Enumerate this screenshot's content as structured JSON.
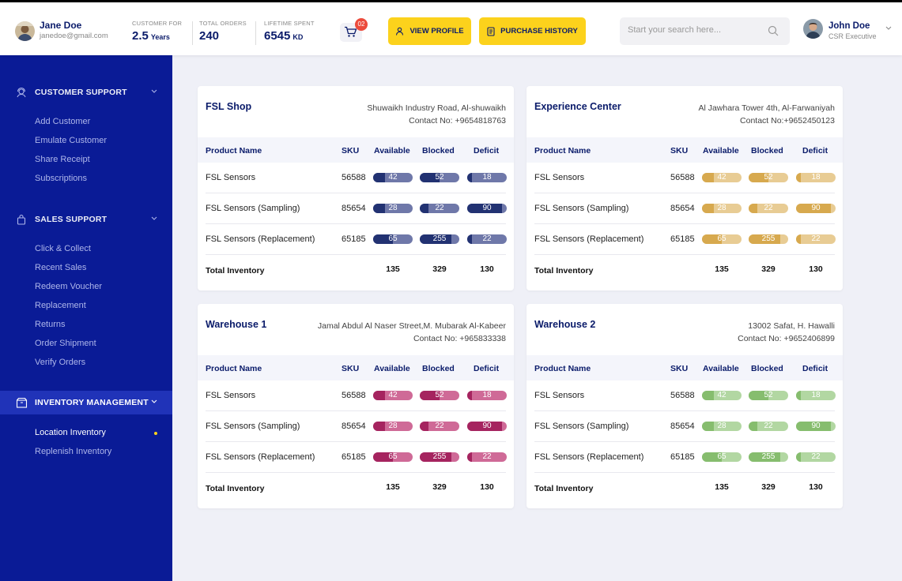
{
  "colors": {
    "navy": "#0a1b6a",
    "sidebar": "#0a1b96",
    "accent_yellow": "#fcd21c",
    "badge_red": "#ec4b3c"
  },
  "customer": {
    "name": "Jane Doe",
    "email": "janedoe@gmail.com"
  },
  "stats": [
    {
      "label": "CUSTOMER FOR",
      "value": "2.5",
      "unit": "Years"
    },
    {
      "label": "TOTAL ORDERS",
      "value": "240",
      "unit": ""
    },
    {
      "label": "LIFETIME SPENT",
      "value": "6545",
      "unit": "KD"
    }
  ],
  "cart": {
    "icon": "cart-icon",
    "count": "02"
  },
  "buttons": {
    "view_profile": "VIEW PROFILE",
    "purchase_history": "PURCHASE HISTORY"
  },
  "search": {
    "placeholder": "Start your search here...",
    "value": ""
  },
  "user": {
    "name": "John Doe",
    "role": "CSR Executive"
  },
  "sidebar": {
    "sections": [
      {
        "title": "CUSTOMER SUPPORT",
        "icon": "support-agent-icon",
        "items": [
          "Add Customer",
          "Emulate Customer",
          "Share Receipt",
          "Subscriptions"
        ]
      },
      {
        "title": "SALES SUPPORT",
        "icon": "bag-icon",
        "items": [
          "Click & Collect",
          "Recent Sales",
          "Redeem Voucher",
          "Replacement",
          "Returns",
          "Order Shipment",
          "Verify Orders"
        ]
      },
      {
        "title": "INVENTORY MANAGEMENT",
        "icon": "inventory-box-icon",
        "items": [
          "Location Inventory",
          "Replenish Inventory"
        ],
        "active_item": "Location Inventory"
      }
    ]
  },
  "table_headers": [
    "Product Name",
    "SKU",
    "Available",
    "Blocked",
    "Deficit"
  ],
  "total_label": "Total Inventory",
  "locations": [
    {
      "name": "FSL Shop",
      "address": "Shuwaikh Industry Road, Al-shuwaikh",
      "contact": "Contact No: +9654818763",
      "theme": "navy",
      "colors": {
        "dark": "#223272",
        "light": "#6f78a9"
      },
      "rows": [
        {
          "name": "FSL Sensors",
          "sku": "56588",
          "available": "42",
          "blocked": "52",
          "deficit": "18",
          "available_fill": 0.3,
          "blocked_fill": 0.5,
          "deficit_fill": 0.12
        },
        {
          "name": "FSL Sensors (Sampling)",
          "sku": "85654",
          "available": "28",
          "blocked": "22",
          "deficit": "90",
          "available_fill": 0.3,
          "blocked_fill": 0.22,
          "deficit_fill": 0.88
        },
        {
          "name": "FSL Sensors (Replacement)",
          "sku": "65185",
          "available": "65",
          "blocked": "255",
          "deficit": "22",
          "available_fill": 0.5,
          "blocked_fill": 0.8,
          "deficit_fill": 0.12
        }
      ],
      "totals": {
        "available": "135",
        "blocked": "329",
        "deficit": "130"
      }
    },
    {
      "name": "Experience Center",
      "address": "Al Jawhara Tower 4th, Al-Farwaniyah",
      "contact": "Contact No:+9652450123",
      "theme": "gold",
      "colors": {
        "dark": "#d7a94e",
        "light": "#e8cc94"
      },
      "rows": [
        {
          "name": "FSL Sensors",
          "sku": "56588",
          "available": "42",
          "blocked": "52",
          "deficit": "18",
          "available_fill": 0.3,
          "blocked_fill": 0.5,
          "deficit_fill": 0.12
        },
        {
          "name": "FSL Sensors (Sampling)",
          "sku": "85654",
          "available": "28",
          "blocked": "22",
          "deficit": "90",
          "available_fill": 0.3,
          "blocked_fill": 0.22,
          "deficit_fill": 0.88
        },
        {
          "name": "FSL Sensors (Replacement)",
          "sku": "65185",
          "available": "65",
          "blocked": "255",
          "deficit": "22",
          "available_fill": 0.5,
          "blocked_fill": 0.8,
          "deficit_fill": 0.12
        }
      ],
      "totals": {
        "available": "135",
        "blocked": "329",
        "deficit": "130"
      }
    },
    {
      "name": "Warehouse 1",
      "address": "Jamal Abdul Al Naser Street,M. Mubarak Al-Kabeer",
      "contact": "Contact No: +965833338",
      "theme": "magenta",
      "colors": {
        "dark": "#a5245f",
        "light": "#cf6a97"
      },
      "rows": [
        {
          "name": "FSL Sensors",
          "sku": "56588",
          "available": "42",
          "blocked": "52",
          "deficit": "18",
          "available_fill": 0.3,
          "blocked_fill": 0.5,
          "deficit_fill": 0.12
        },
        {
          "name": "FSL Sensors (Sampling)",
          "sku": "85654",
          "available": "28",
          "blocked": "22",
          "deficit": "90",
          "available_fill": 0.3,
          "blocked_fill": 0.22,
          "deficit_fill": 0.88
        },
        {
          "name": "FSL Sensors (Replacement)",
          "sku": "65185",
          "available": "65",
          "blocked": "255",
          "deficit": "22",
          "available_fill": 0.5,
          "blocked_fill": 0.8,
          "deficit_fill": 0.12
        }
      ],
      "totals": {
        "available": "135",
        "blocked": "329",
        "deficit": "130"
      }
    },
    {
      "name": "Warehouse 2",
      "address": "13002 Safat, H. Hawalli",
      "contact": "Contact No: +9652406899",
      "theme": "green",
      "colors": {
        "dark": "#86bd6e",
        "light": "#b2d7a2"
      },
      "rows": [
        {
          "name": "FSL Sensors",
          "sku": "56588",
          "available": "42",
          "blocked": "52",
          "deficit": "18",
          "available_fill": 0.3,
          "blocked_fill": 0.5,
          "deficit_fill": 0.12
        },
        {
          "name": "FSL Sensors (Sampling)",
          "sku": "85654",
          "available": "28",
          "blocked": "22",
          "deficit": "90",
          "available_fill": 0.3,
          "blocked_fill": 0.22,
          "deficit_fill": 0.88
        },
        {
          "name": "FSL Sensors (Replacement)",
          "sku": "65185",
          "available": "65",
          "blocked": "255",
          "deficit": "22",
          "available_fill": 0.5,
          "blocked_fill": 0.8,
          "deficit_fill": 0.12
        }
      ],
      "totals": {
        "available": "135",
        "blocked": "329",
        "deficit": "130"
      }
    }
  ]
}
